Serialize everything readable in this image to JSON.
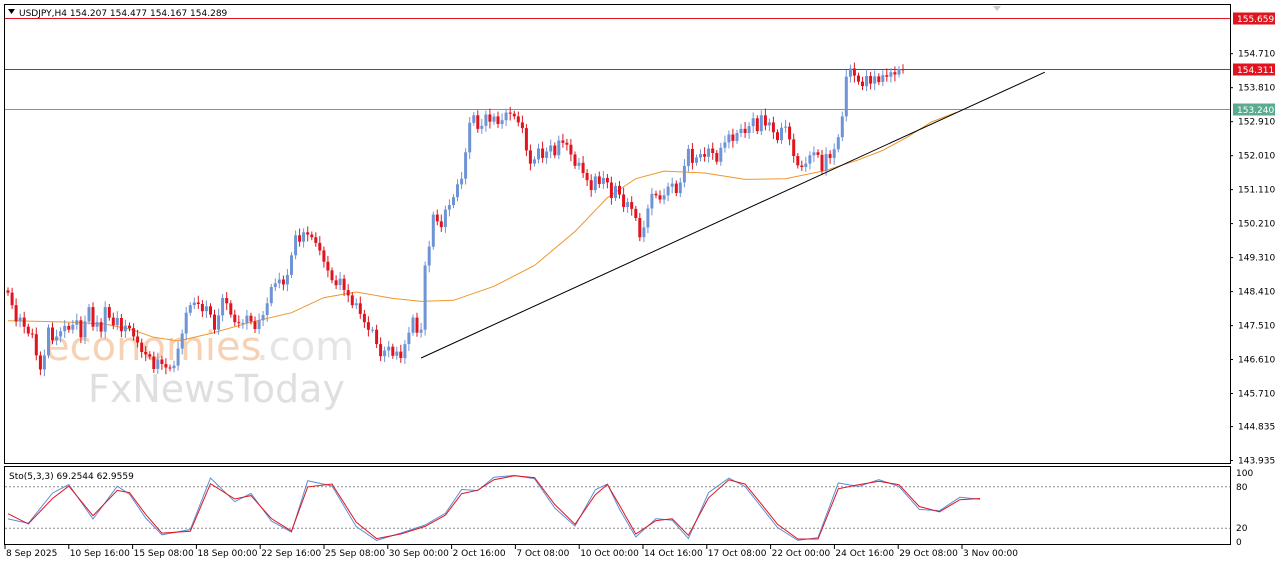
{
  "header": {
    "symbol_line": "USDJPY,H4  154.207 154.477 154.167 154.289"
  },
  "watermark": {
    "part1": "economies",
    "part2": ".com",
    "line2": "FxNewsToday"
  },
  "oscillator": {
    "label": "Sto(5,3,3) 69.2544 62.9559",
    "levels": [
      "100",
      "80",
      "20",
      "0"
    ]
  },
  "colors": {
    "bull": "#6f94d6",
    "bear": "#e0141e",
    "ma": "#f0962a",
    "resistance": "#e0141e",
    "support": "#5aab8f",
    "trendline": "#000000",
    "stoch_main": "#5b8fd8",
    "stoch_signal": "#e0141e"
  },
  "chart_data": {
    "type": "candlestick",
    "symbol": "USDJPY",
    "timeframe": "H4",
    "x_labels": [
      "8 Sep 2025",
      "10 Sep 16:00",
      "15 Sep 08:00",
      "18 Sep 00:00",
      "22 Sep 16:00",
      "25 Sep 08:00",
      "30 Sep 00:00",
      "2 Oct 16:00",
      "7 Oct 08:00",
      "10 Oct 00:00",
      "14 Oct 16:00",
      "17 Oct 08:00",
      "22 Oct 00:00",
      "24 Oct 16:00",
      "29 Oct 08:00",
      "3 Nov 00:00"
    ],
    "y_ticks": [
      143.935,
      144.835,
      145.71,
      146.61,
      147.51,
      148.41,
      149.31,
      150.21,
      151.11,
      152.01,
      152.91,
      153.81,
      154.71
    ],
    "ylim": [
      143.87,
      156.0
    ],
    "horizontal_levels": [
      {
        "label": "155.659",
        "value": 155.659,
        "color": "#e0141e"
      },
      {
        "label": "154.311",
        "value": 154.311,
        "color": "#e0141e"
      },
      {
        "label": "153.240",
        "value": 153.24,
        "color": "#5aab8f"
      }
    ],
    "trendline": {
      "start": {
        "bar": 102,
        "price": 146.65
      },
      "end": {
        "bar": 256,
        "price": 154.22
      }
    },
    "candles_close": [
      148.38,
      148.05,
      147.62,
      147.72,
      147.48,
      147.3,
      147.28,
      146.72,
      146.35,
      146.72,
      147.46,
      147.12,
      147.22,
      147.36,
      147.5,
      147.4,
      147.53,
      147.65,
      147.2,
      147.62,
      148.0,
      147.48,
      147.6,
      147.35,
      148.0,
      147.72,
      147.52,
      147.71,
      147.36,
      147.51,
      147.44,
      147.22,
      147.06,
      146.81,
      146.75,
      146.69,
      146.36,
      146.61,
      146.49,
      146.4,
      146.38,
      146.45,
      146.9,
      147.3,
      147.85,
      148.05,
      148.12,
      148.08,
      147.89,
      148.02,
      147.8,
      147.4,
      147.78,
      148.24,
      148.1,
      147.8,
      147.6,
      147.58,
      147.58,
      147.77,
      147.62,
      147.42,
      147.65,
      147.79,
      148.1,
      148.53,
      148.63,
      148.73,
      148.6,
      148.85,
      149.37,
      149.9,
      149.73,
      149.98,
      149.92,
      149.85,
      149.7,
      149.5,
      149.2,
      148.97,
      148.71,
      148.58,
      148.75,
      148.45,
      148.31,
      148.05,
      148.1,
      147.82,
      147.6,
      147.4,
      147.4,
      147.02,
      146.7,
      146.85,
      146.95,
      146.71,
      146.82,
      146.65,
      147.02,
      147.32,
      147.72,
      147.32,
      147.4,
      149.1,
      149.6,
      150.45,
      150.27,
      150.12,
      150.58,
      150.7,
      150.91,
      151.25,
      151.4,
      152.1,
      152.88,
      153.08,
      152.72,
      152.8,
      153.1,
      152.91,
      153.05,
      152.85,
      152.95,
      153.15,
      153.12,
      153.05,
      152.89,
      152.74,
      152.15,
      151.8,
      151.91,
      152.2,
      151.95,
      152.12,
      152.28,
      152.02,
      152.41,
      152.35,
      152.3,
      152.04,
      151.74,
      151.82,
      151.55,
      151.36,
      151.1,
      151.46,
      151.26,
      151.42,
      151.3,
      150.89,
      151.21,
      150.98,
      150.65,
      150.78,
      150.6,
      150.36,
      149.85,
      150.11,
      150.61,
      151.0,
      150.96,
      150.85,
      150.96,
      151.19,
      151.27,
      151.02,
      151.3,
      151.74,
      152.19,
      151.82,
      151.96,
      152.05,
      151.98,
      152.2,
      152.08,
      151.85,
      152.22,
      152.36,
      152.57,
      152.4,
      152.61,
      152.72,
      152.61,
      152.79,
      153.0,
      152.66,
      153.08,
      152.81,
      152.89,
      152.63,
      152.42,
      152.75,
      152.78,
      152.44,
      152.0,
      151.75,
      151.71,
      151.8,
      152.02,
      152.1,
      152.03,
      151.61,
      152.05,
      151.95,
      152.18,
      152.5,
      153.05,
      154.1,
      154.32,
      154.13,
      153.97,
      153.85,
      154.12,
      153.92,
      154.11,
      153.96,
      154.14,
      154.1,
      154.22,
      154.16,
      154.3,
      154.289
    ],
    "moving_average": {
      "color": "#f0962a",
      "points": [
        [
          0,
          147.64
        ],
        [
          8,
          147.62
        ],
        [
          16,
          147.6
        ],
        [
          24,
          147.55
        ],
        [
          30,
          147.42
        ],
        [
          36,
          147.2
        ],
        [
          42,
          147.1
        ],
        [
          50,
          147.3
        ],
        [
          60,
          147.6
        ],
        [
          70,
          147.85
        ],
        [
          78,
          148.25
        ],
        [
          86,
          148.4
        ],
        [
          95,
          148.23
        ],
        [
          102,
          148.15
        ],
        [
          110,
          148.18
        ],
        [
          120,
          148.55
        ],
        [
          130,
          149.1
        ],
        [
          140,
          150.0
        ],
        [
          148,
          150.9
        ],
        [
          155,
          151.4
        ],
        [
          162,
          151.6
        ],
        [
          172,
          151.55
        ],
        [
          182,
          151.38
        ],
        [
          192,
          151.4
        ],
        [
          202,
          151.62
        ],
        [
          210,
          151.9
        ],
        [
          216,
          152.15
        ],
        [
          222,
          152.5
        ],
        [
          228,
          152.9
        ],
        [
          234,
          153.15
        ]
      ]
    },
    "stochastic": {
      "k_period": 5,
      "d_period": 3,
      "slowing": 3,
      "main_value": 69.2544,
      "signal_value": 62.9559,
      "levels": [
        100,
        80,
        20,
        0
      ],
      "main": [
        [
          0,
          33.5
        ],
        [
          5,
          27.1
        ],
        [
          11,
          70.8
        ],
        [
          15,
          83.4
        ],
        [
          21,
          33.4
        ],
        [
          27,
          80.9
        ],
        [
          30,
          69.3
        ],
        [
          34,
          34.8
        ],
        [
          38,
          10.4
        ],
        [
          45,
          18.1
        ],
        [
          50,
          92.8
        ],
        [
          56,
          58.4
        ],
        [
          60,
          70.4
        ],
        [
          65,
          30.4
        ],
        [
          70,
          14.3
        ],
        [
          74,
          88.8
        ],
        [
          80,
          81.1
        ],
        [
          86,
          22.2
        ],
        [
          91,
          2.3
        ],
        [
          97,
          12.9
        ],
        [
          103,
          24.6
        ],
        [
          108,
          41.6
        ],
        [
          112,
          76.1
        ],
        [
          116,
          74.6
        ],
        [
          120,
          93.9
        ],
        [
          125,
          96.5
        ],
        [
          130,
          91.8
        ],
        [
          135,
          49.3
        ],
        [
          140,
          23.1
        ],
        [
          145,
          75.8
        ],
        [
          148,
          84.0
        ],
        [
          151,
          47.4
        ],
        [
          155,
          7.2
        ],
        [
          160,
          33.9
        ],
        [
          164,
          31.6
        ],
        [
          168,
          5.1
        ],
        [
          173,
          71.6
        ],
        [
          178,
          92.6
        ],
        [
          182,
          80.3
        ],
        [
          186,
          50.8
        ],
        [
          190,
          21.0
        ],
        [
          195,
          2.3
        ],
        [
          200,
          6.4
        ],
        [
          205,
          85.5
        ],
        [
          210,
          80.5
        ],
        [
          215,
          90.5
        ],
        [
          220,
          80.4
        ],
        [
          225,
          47.2
        ],
        [
          230,
          45.3
        ],
        [
          235,
          64.8
        ],
        [
          240,
          62.1
        ]
      ],
      "signal": [
        [
          0,
          41.0
        ],
        [
          5,
          26.3
        ],
        [
          11,
          63.1
        ],
        [
          15,
          81.0
        ],
        [
          21,
          38.1
        ],
        [
          27,
          74.8
        ],
        [
          30,
          71.6
        ],
        [
          34,
          40.0
        ],
        [
          38,
          12.9
        ],
        [
          45,
          15.5
        ],
        [
          50,
          84.5
        ],
        [
          56,
          62.3
        ],
        [
          60,
          67.3
        ],
        [
          65,
          34.0
        ],
        [
          70,
          15.8
        ],
        [
          74,
          79.8
        ],
        [
          80,
          84.1
        ],
        [
          86,
          28.6
        ],
        [
          91,
          4.9
        ],
        [
          97,
          11.6
        ],
        [
          103,
          22.6
        ],
        [
          108,
          39.0
        ],
        [
          112,
          70.0
        ],
        [
          116,
          75.1
        ],
        [
          120,
          90.3
        ],
        [
          125,
          95.9
        ],
        [
          130,
          93.4
        ],
        [
          135,
          54.4
        ],
        [
          140,
          25.7
        ],
        [
          145,
          68.6
        ],
        [
          148,
          83.4
        ],
        [
          151,
          53.2
        ],
        [
          155,
          11.6
        ],
        [
          160,
          31.0
        ],
        [
          164,
          33.6
        ],
        [
          168,
          9.7
        ],
        [
          173,
          64.0
        ],
        [
          178,
          90.2
        ],
        [
          182,
          83.9
        ],
        [
          186,
          55.2
        ],
        [
          190,
          25.7
        ],
        [
          195,
          4.4
        ],
        [
          200,
          4.3
        ],
        [
          205,
          77.1
        ],
        [
          210,
          83.1
        ],
        [
          215,
          88.0
        ],
        [
          220,
          83.0
        ],
        [
          225,
          51.4
        ],
        [
          230,
          43.8
        ],
        [
          235,
          61.3
        ],
        [
          240,
          63.0
        ]
      ]
    }
  }
}
